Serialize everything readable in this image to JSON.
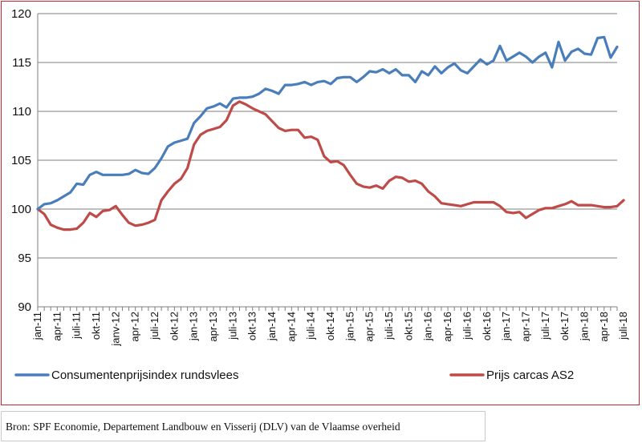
{
  "colors": {
    "frame": "#c0262d",
    "series_blue": "#4a7ebb",
    "series_red": "#be4b48",
    "grid": "#7f7f7f"
  },
  "source": "Bron: SPF Economie, Departement Landbouw en Visserij (DLV) van de Vlaamse overheid",
  "chart_data": {
    "type": "line",
    "title": "",
    "xlabel": "",
    "ylabel": "",
    "ylim": [
      90,
      120
    ],
    "yticks": [
      "90",
      "95",
      "100",
      "105",
      "110",
      "115",
      "120"
    ],
    "grid": "horizontal",
    "legend_position": "bottom",
    "x_labels": [
      "jan-11",
      "apr-11",
      "juli-11",
      "okt-11",
      "janv-12",
      "apr-12",
      "juli-12",
      "okt-12",
      "jan-13",
      "apr-13",
      "juli-13",
      "okt-13",
      "jan-14",
      "apr-14",
      "juli-14",
      "okt-14",
      "jan-15",
      "apr-15",
      "juli-15",
      "okt-15",
      "jan-16",
      "apr-16",
      "juli-16",
      "okt-16",
      "jan-17",
      "apr-17",
      "juli-17",
      "okt-17",
      "jan-18",
      "apr-18",
      "juli-18"
    ],
    "series": [
      {
        "name": "Consumentenprijsindex rundsvlees",
        "values": [
          100,
          100.5,
          100.6,
          100.9,
          101.3,
          101.7,
          102.6,
          102.5,
          103.5,
          103.8,
          103.5,
          103.5,
          103.5,
          103.5,
          103.6,
          104.0,
          103.7,
          103.6,
          104.2,
          105.2,
          106.4,
          106.8,
          107.0,
          107.2,
          108.8,
          109.5,
          110.3,
          110.5,
          110.8,
          110.4,
          111.3,
          111.4,
          111.4,
          111.5,
          111.8,
          112.3,
          112.1,
          111.8,
          112.7,
          112.7,
          112.8,
          113.0,
          112.7,
          113.0,
          113.1,
          112.8,
          113.4,
          113.5,
          113.5,
          113.0,
          113.5,
          114.1,
          114.0,
          114.3,
          113.9,
          114.3,
          113.7,
          113.7,
          113.0,
          114.1,
          113.7,
          114.6,
          113.9,
          114.5,
          114.9,
          114.2,
          113.9,
          114.6,
          115.3,
          114.8,
          115.2,
          116.7,
          115.2,
          115.6,
          116.0,
          115.6,
          115.0,
          115.6,
          116.0,
          114.5,
          117.1,
          115.2,
          116.1,
          116.4,
          115.9,
          115.8,
          117.5,
          117.6,
          115.5,
          116.6
        ]
      },
      {
        "name": "Prijs carcas AS2",
        "values": [
          100,
          99.5,
          98.4,
          98.1,
          97.9,
          97.9,
          98.0,
          98.6,
          99.6,
          99.2,
          99.8,
          99.9,
          100.3,
          99.4,
          98.6,
          98.3,
          98.4,
          98.6,
          98.9,
          100.9,
          101.8,
          102.6,
          103.1,
          104.2,
          106.6,
          107.6,
          108.0,
          108.2,
          108.4,
          109.1,
          110.6,
          111.0,
          110.7,
          110.3,
          110.0,
          109.7,
          109.0,
          108.3,
          108.0,
          108.1,
          108.1,
          107.3,
          107.4,
          107.1,
          105.4,
          104.8,
          104.9,
          104.5,
          103.5,
          102.6,
          102.3,
          102.2,
          102.4,
          102.1,
          102.9,
          103.3,
          103.2,
          102.8,
          102.9,
          102.6,
          101.8,
          101.3,
          100.6,
          100.5,
          100.4,
          100.3,
          100.5,
          100.7,
          100.7,
          100.7,
          100.7,
          100.3,
          99.7,
          99.6,
          99.7,
          99.1,
          99.5,
          99.9,
          100.1,
          100.1,
          100.3,
          100.5,
          100.8,
          100.4,
          100.4,
          100.4,
          100.3,
          100.2,
          100.2,
          100.3,
          100.9
        ]
      }
    ]
  }
}
